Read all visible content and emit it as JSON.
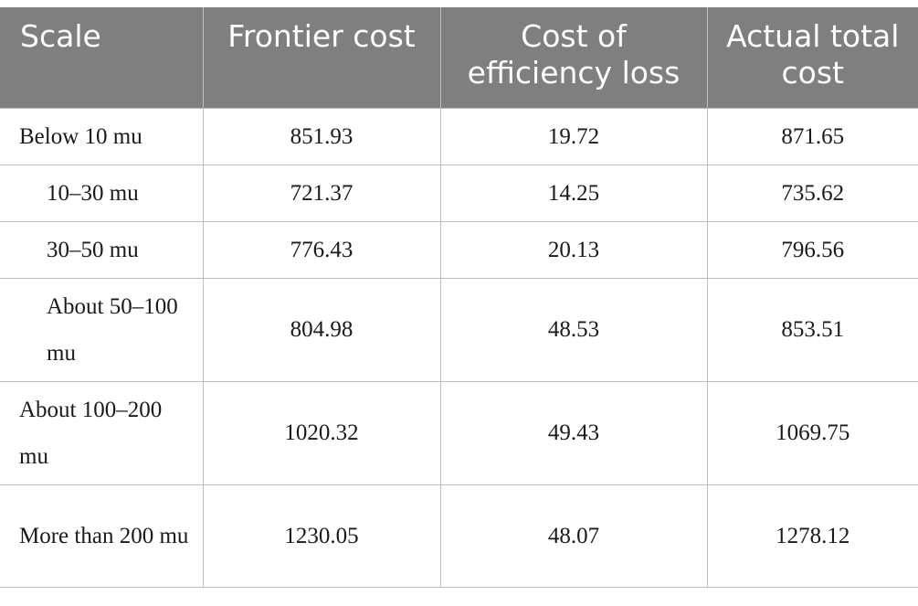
{
  "table": {
    "headers": [
      "Scale",
      "Frontier cost",
      "Cost of efficiency loss",
      "Actual total cost"
    ],
    "rows": [
      [
        "Below 10 mu",
        "851.93",
        "19.72",
        "871.65"
      ],
      [
        "10–30 mu",
        "721.37",
        "14.25",
        "735.62"
      ],
      [
        "30–50 mu",
        "776.43",
        "20.13",
        "796.56"
      ],
      [
        "About 50–100 mu",
        "804.98",
        "48.53",
        "853.51"
      ],
      [
        "About 100–200 mu",
        "1020.32",
        "49.43",
        "1069.75"
      ],
      [
        "More than 200 mu",
        "1230.05",
        "48.07",
        "1278.12"
      ]
    ]
  }
}
